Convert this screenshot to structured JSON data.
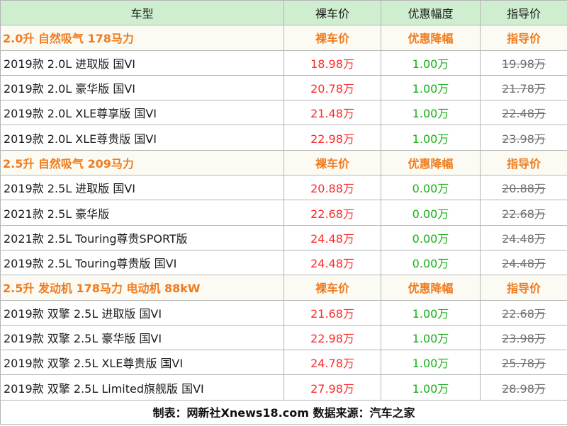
{
  "header": {
    "model": "车型",
    "price": "裸车价",
    "discount": "优惠幅度",
    "guide": "指导价"
  },
  "groups": [
    {
      "title": "2.0升 自然吸气 178马力",
      "price_label": "裸车价",
      "discount_label": "优惠降幅",
      "guide_label": "指导价",
      "rows": [
        {
          "model": "2019款 2.0L 进取版 国VI",
          "price": "18.98万",
          "discount": "1.00万",
          "guide": "19.98万"
        },
        {
          "model": "2019款 2.0L 豪华版 国VI",
          "price": "20.78万",
          "discount": "1.00万",
          "guide": "21.78万"
        },
        {
          "model": "2019款 2.0L XLE尊享版 国VI",
          "price": "21.48万",
          "discount": "1.00万",
          "guide": "22.48万"
        },
        {
          "model": "2019款 2.0L XLE尊贵版 国VI",
          "price": "22.98万",
          "discount": "1.00万",
          "guide": "23.98万"
        }
      ]
    },
    {
      "title": "2.5升 自然吸气 209马力",
      "price_label": "裸车价",
      "discount_label": "优惠降幅",
      "guide_label": "指导价",
      "rows": [
        {
          "model": "2019款 2.5L 进取版 国VI",
          "price": "20.88万",
          "discount": "0.00万",
          "guide": "20.88万"
        },
        {
          "model": "2021款 2.5L 豪华版",
          "price": "22.68万",
          "discount": "0.00万",
          "guide": "22.68万"
        },
        {
          "model": "2021款 2.5L Touring尊贵SPORT版",
          "price": "24.48万",
          "discount": "0.00万",
          "guide": "24.48万"
        },
        {
          "model": "2019款 2.5L Touring尊贵版 国VI",
          "price": "24.48万",
          "discount": "0.00万",
          "guide": "24.48万"
        }
      ]
    },
    {
      "title": "2.5升 发动机 178马力 电动机 88kW",
      "price_label": "裸车价",
      "discount_label": "优惠降幅",
      "guide_label": "指导价",
      "rows": [
        {
          "model": "2019款 双擎 2.5L 进取版 国VI",
          "price": "21.68万",
          "discount": "1.00万",
          "guide": "22.68万"
        },
        {
          "model": "2019款 双擎 2.5L 豪华版 国VI",
          "price": "22.98万",
          "discount": "1.00万",
          "guide": "23.98万"
        },
        {
          "model": "2019款 双擎 2.5L XLE尊贵版 国VI",
          "price": "24.78万",
          "discount": "1.00万",
          "guide": "25.78万"
        },
        {
          "model": "2019款 双擎 2.5L Limited旗舰版 国VI",
          "price": "27.98万",
          "discount": "1.00万",
          "guide": "28.98万"
        }
      ]
    }
  ],
  "footer": "制表：网新社Xnews18.com 数据来源：汽车之家",
  "colors": {
    "header_bg": "#cfeecf",
    "group_text": "#f07b1e",
    "price": "#ff2a2a",
    "discount": "#19b019",
    "guide": "#707070"
  }
}
